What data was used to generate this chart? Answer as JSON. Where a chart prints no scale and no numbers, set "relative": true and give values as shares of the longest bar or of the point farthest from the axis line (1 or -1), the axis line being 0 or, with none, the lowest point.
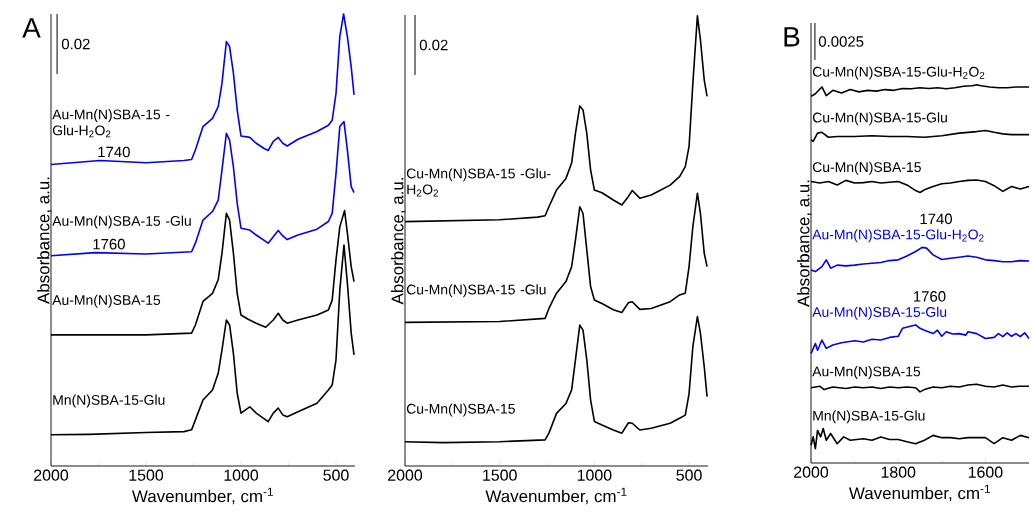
{
  "chart_data": [
    {
      "type": "line",
      "relative": true,
      "title": "A",
      "xlabel": "Wavenumber, cm$^{-1}$",
      "ylabel": "Absorbance, a.u.",
      "xlim": [
        2000,
        400
      ],
      "xticks": [
        2000,
        1500,
        1000,
        500
      ],
      "annotations": [
        "0.02",
        {
          "text": "1740",
          "x": 1742,
          "y": 0.676
        },
        {
          "text": "1760",
          "x": 1768,
          "y": 0.472
        }
      ],
      "series": [
        {
          "name": "Au-Mn(N)SBA-15 -Glu-H$_{2}$O$_{2}$",
          "color": "#0000ff",
          "x": [
            2000,
            1742,
            1500,
            1300,
            1260,
            1240,
            1200,
            1150,
            1120,
            1100,
            1077,
            1060,
            1040,
            1020,
            1000,
            954,
            920,
            880,
            857,
            830,
            804,
            780,
            757,
            700,
            600,
            540,
            520,
            500,
            480,
            460,
            440,
            420,
            405
          ],
          "values": [
            0.667,
            0.676,
            0.671,
            0.676,
            0.678,
            0.699,
            0.751,
            0.769,
            0.795,
            0.847,
            0.939,
            0.928,
            0.869,
            0.788,
            0.73,
            0.727,
            0.714,
            0.703,
            0.698,
            0.718,
            0.727,
            0.714,
            0.708,
            0.723,
            0.74,
            0.754,
            0.765,
            0.824,
            0.95,
            1.0,
            0.95,
            0.883,
            0.821
          ]
        },
        {
          "name": "Au-Mn(N)SBA-15 -Glu",
          "color": "#0000ff",
          "x": [
            2000,
            1768,
            1500,
            1260,
            1240,
            1200,
            1150,
            1120,
            1100,
            1077,
            1060,
            1040,
            1020,
            1000,
            954,
            920,
            857,
            830,
            804,
            780,
            757,
            700,
            600,
            540,
            520,
            500,
            480,
            458,
            440,
            420,
            405
          ],
          "values": [
            0.465,
            0.472,
            0.469,
            0.474,
            0.493,
            0.544,
            0.563,
            0.588,
            0.655,
            0.736,
            0.721,
            0.662,
            0.581,
            0.526,
            0.522,
            0.511,
            0.493,
            0.507,
            0.521,
            0.509,
            0.501,
            0.511,
            0.524,
            0.541,
            0.559,
            0.647,
            0.751,
            0.762,
            0.699,
            0.618,
            0.605
          ]
        },
        {
          "name": "Au-Mn(N)SBA-15",
          "color": "#000000",
          "x": [
            2000,
            1500,
            1260,
            1240,
            1200,
            1150,
            1120,
            1100,
            1077,
            1060,
            1040,
            1020,
            1000,
            960,
            920,
            870,
            830,
            804,
            780,
            757,
            700,
            600,
            540,
            520,
            500,
            480,
            455,
            440,
            420,
            405
          ],
          "values": [
            0.29,
            0.29,
            0.294,
            0.312,
            0.364,
            0.382,
            0.412,
            0.471,
            0.559,
            0.544,
            0.471,
            0.382,
            0.334,
            0.324,
            0.316,
            0.307,
            0.323,
            0.338,
            0.323,
            0.316,
            0.323,
            0.334,
            0.345,
            0.367,
            0.456,
            0.529,
            0.565,
            0.515,
            0.441,
            0.408
          ]
        },
        {
          "name": "Mn(N)SBA-15-Glu",
          "color": "#000000",
          "x": [
            2000,
            1800,
            1500,
            1300,
            1260,
            1240,
            1200,
            1150,
            1120,
            1100,
            1077,
            1060,
            1040,
            1020,
            1000,
            954,
            920,
            857,
            830,
            804,
            780,
            757,
            700,
            600,
            540,
            520,
            500,
            480,
            458,
            440,
            420,
            405
          ],
          "values": [
            0.069,
            0.07,
            0.074,
            0.076,
            0.08,
            0.102,
            0.146,
            0.168,
            0.205,
            0.257,
            0.323,
            0.312,
            0.249,
            0.161,
            0.117,
            0.131,
            0.117,
            0.098,
            0.117,
            0.128,
            0.113,
            0.109,
            0.12,
            0.139,
            0.168,
            0.179,
            0.235,
            0.389,
            0.489,
            0.404,
            0.294,
            0.246
          ]
        }
      ]
    },
    {
      "type": "line",
      "relative": true,
      "xlabel": "Wavenumber, cm$^{-1}$",
      "ylabel": "Absorbance, a.u.",
      "xlim": [
        2000,
        400
      ],
      "xticks": [
        2000,
        1500,
        1000,
        500
      ],
      "annotations": [
        "0.02"
      ],
      "series": [
        {
          "name": "Cu-Mn(N)SBA-15 -Glu-H$_{2}$O$_{2}$",
          "color": "#000000",
          "x": [
            2000,
            1500,
            1300,
            1260,
            1240,
            1200,
            1150,
            1120,
            1100,
            1077,
            1060,
            1040,
            1020,
            1000,
            960,
            900,
            855,
            820,
            800,
            760,
            700,
            600,
            550,
            520,
            500,
            480,
            456,
            440,
            420,
            405
          ],
          "values": [
            0.543,
            0.547,
            0.553,
            0.556,
            0.576,
            0.613,
            0.639,
            0.673,
            0.739,
            0.8,
            0.791,
            0.739,
            0.658,
            0.613,
            0.607,
            0.591,
            0.58,
            0.599,
            0.612,
            0.595,
            0.602,
            0.624,
            0.643,
            0.665,
            0.71,
            0.85,
            1.0,
            0.947,
            0.858,
            0.821
          ]
        },
        {
          "name": "Cu-Mn(N)SBA-15 -Glu",
          "color": "#000000",
          "x": [
            2000,
            1500,
            1260,
            1240,
            1200,
            1150,
            1120,
            1100,
            1077,
            1060,
            1040,
            1020,
            1000,
            960,
            900,
            855,
            820,
            800,
            760,
            700,
            600,
            550,
            520,
            500,
            480,
            456,
            440,
            420,
            405
          ],
          "values": [
            0.319,
            0.321,
            0.328,
            0.35,
            0.384,
            0.41,
            0.443,
            0.502,
            0.576,
            0.561,
            0.48,
            0.399,
            0.369,
            0.361,
            0.347,
            0.341,
            0.363,
            0.365,
            0.348,
            0.35,
            0.365,
            0.38,
            0.384,
            0.443,
            0.532,
            0.606,
            0.561,
            0.473,
            0.443
          ]
        },
        {
          "name": "Cu-Mn(N)SBA-15",
          "color": "#000000",
          "x": [
            2000,
            1800,
            1500,
            1260,
            1240,
            1200,
            1150,
            1120,
            1100,
            1077,
            1060,
            1040,
            1020,
            1000,
            960,
            900,
            855,
            820,
            800,
            760,
            700,
            600,
            550,
            520,
            500,
            480,
            456,
            440,
            420,
            405
          ],
          "values": [
            0.054,
            0.052,
            0.054,
            0.058,
            0.073,
            0.117,
            0.139,
            0.169,
            0.236,
            0.313,
            0.302,
            0.236,
            0.147,
            0.099,
            0.091,
            0.08,
            0.073,
            0.096,
            0.095,
            0.08,
            0.084,
            0.095,
            0.106,
            0.113,
            0.161,
            0.265,
            0.332,
            0.295,
            0.221,
            0.154
          ]
        }
      ]
    },
    {
      "type": "line",
      "relative": true,
      "title": "B",
      "xlabel": "Wavenumber, cm$^{-1}$",
      "ylabel": "Absorbance, a.u.",
      "xlim": [
        2000,
        1500
      ],
      "xticks": [
        2000,
        1800,
        1600
      ],
      "annotations": [
        "0.0025",
        {
          "text": "1740",
          "x": 1745,
          "y": 0.57
        },
        {
          "text": "1760",
          "x": 1760,
          "y": 0.365
        }
      ],
      "series": [
        {
          "name": "Cu-Mn(N)SBA-15-Glu-H$_{2}$O$_{2}$",
          "color": "#000000",
          "x": [
            2000,
            1990,
            1975,
            1965,
            1950,
            1930,
            1910,
            1890,
            1870,
            1850,
            1830,
            1810,
            1790,
            1770,
            1750,
            1730,
            1710,
            1690,
            1670,
            1650,
            1630,
            1620,
            1610,
            1590,
            1570,
            1550,
            1530,
            1510,
            1500
          ],
          "values": [
            0.969,
            0.976,
            0.994,
            0.971,
            0.985,
            0.978,
            0.987,
            0.981,
            0.985,
            0.983,
            0.987,
            0.985,
            0.99,
            0.989,
            0.992,
            0.99,
            0.992,
            0.989,
            0.992,
            0.996,
            0.997,
            1.0,
            0.997,
            0.994,
            0.992,
            0.992,
            0.994,
            0.994,
            0.994
          ]
        },
        {
          "name": "Cu-Mn(N)SBA-15-Glu",
          "color": "#000000",
          "x": [
            2000,
            1995,
            1985,
            1975,
            1960,
            1940,
            1900,
            1860,
            1820,
            1780,
            1740,
            1700,
            1660,
            1620,
            1600,
            1580,
            1560,
            1540,
            1520,
            1500
          ],
          "values": [
            0.854,
            0.85,
            0.872,
            0.874,
            0.861,
            0.863,
            0.863,
            0.865,
            0.863,
            0.863,
            0.861,
            0.865,
            0.872,
            0.876,
            0.879,
            0.874,
            0.87,
            0.868,
            0.868,
            0.868
          ]
        },
        {
          "name": "Cu-Mn(N)SBA-15",
          "color": "#000000",
          "x": [
            2000,
            1980,
            1960,
            1940,
            1920,
            1900,
            1880,
            1860,
            1840,
            1800,
            1780,
            1760,
            1750,
            1740,
            1720,
            1700,
            1680,
            1660,
            1640,
            1620,
            1600,
            1580,
            1560,
            1540,
            1520,
            1500
          ],
          "values": [
            0.744,
            0.74,
            0.744,
            0.735,
            0.747,
            0.74,
            0.741,
            0.744,
            0.74,
            0.744,
            0.735,
            0.72,
            0.715,
            0.722,
            0.731,
            0.738,
            0.74,
            0.744,
            0.747,
            0.748,
            0.744,
            0.733,
            0.718,
            0.731,
            0.724,
            0.731
          ]
        },
        {
          "name": "Au-Mn(N)SBA-15-Glu-H$_{2}$O$_{2}$",
          "color": "#0000ff",
          "x": [
            2000,
            1990,
            1975,
            1965,
            1955,
            1940,
            1920,
            1900,
            1880,
            1860,
            1840,
            1820,
            1800,
            1780,
            1760,
            1745,
            1735,
            1720,
            1700,
            1680,
            1660,
            1640,
            1620,
            1600,
            1580,
            1560,
            1540,
            1520,
            1500
          ],
          "values": [
            0.51,
            0.506,
            0.519,
            0.537,
            0.515,
            0.523,
            0.521,
            0.523,
            0.526,
            0.528,
            0.53,
            0.535,
            0.537,
            0.547,
            0.559,
            0.57,
            0.568,
            0.55,
            0.538,
            0.541,
            0.544,
            0.547,
            0.544,
            0.537,
            0.535,
            0.532,
            0.532,
            0.535,
            0.534
          ]
        },
        {
          "name": "Au-Mn(N)SBA-15-Glu",
          "color": "#0000ff",
          "x": [
            2000,
            1990,
            1985,
            1975,
            1965,
            1950,
            1930,
            1900,
            1880,
            1860,
            1840,
            1820,
            1800,
            1790,
            1770,
            1760,
            1750,
            1740,
            1720,
            1710,
            1700,
            1690,
            1675,
            1660,
            1645,
            1640,
            1620,
            1600,
            1580,
            1570,
            1560,
            1550,
            1540,
            1530,
            1520,
            1510,
            1500
          ],
          "values": [
            0.289,
            0.316,
            0.298,
            0.325,
            0.303,
            0.312,
            0.318,
            0.323,
            0.32,
            0.327,
            0.325,
            0.332,
            0.335,
            0.356,
            0.362,
            0.365,
            0.356,
            0.351,
            0.342,
            0.351,
            0.335,
            0.347,
            0.341,
            0.342,
            0.338,
            0.347,
            0.342,
            0.329,
            0.332,
            0.342,
            0.334,
            0.344,
            0.335,
            0.342,
            0.334,
            0.344,
            0.329
          ]
        },
        {
          "name": "Au-Mn(N)SBA-15",
          "color": "#000000",
          "x": [
            2000,
            1980,
            1970,
            1950,
            1920,
            1900,
            1880,
            1860,
            1840,
            1820,
            1800,
            1780,
            1760,
            1750,
            1740,
            1720,
            1700,
            1680,
            1660,
            1640,
            1620,
            1600,
            1580,
            1560,
            1540,
            1520,
            1500
          ],
          "values": [
            0.199,
            0.203,
            0.194,
            0.201,
            0.197,
            0.201,
            0.199,
            0.201,
            0.197,
            0.201,
            0.199,
            0.201,
            0.199,
            0.188,
            0.194,
            0.201,
            0.199,
            0.203,
            0.201,
            0.206,
            0.208,
            0.203,
            0.201,
            0.206,
            0.201,
            0.203,
            0.203
          ]
        },
        {
          "name": "Mn(N)SBA-15-Glu",
          "color": "#000000",
          "x": [
            2000,
            1995,
            1990,
            1985,
            1978,
            1972,
            1965,
            1955,
            1940,
            1925,
            1910,
            1880,
            1860,
            1840,
            1820,
            1800,
            1780,
            1760,
            1740,
            1720,
            1700,
            1680,
            1660,
            1640,
            1620,
            1600,
            1580,
            1560,
            1540,
            1520,
            1500
          ],
          "values": [
            0.047,
            0.069,
            0.038,
            0.086,
            0.069,
            0.091,
            0.06,
            0.078,
            0.051,
            0.069,
            0.06,
            0.064,
            0.06,
            0.069,
            0.062,
            0.062,
            0.056,
            0.051,
            0.06,
            0.073,
            0.067,
            0.067,
            0.064,
            0.067,
            0.067,
            0.067,
            0.051,
            0.067,
            0.06,
            0.073,
            0.067
          ]
        }
      ]
    }
  ]
}
